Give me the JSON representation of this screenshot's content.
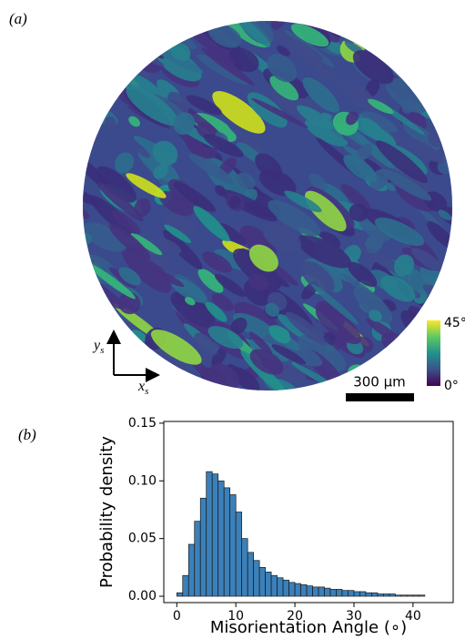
{
  "panel_a": {
    "label": "(a)",
    "y_axis": "y",
    "y_sub": "s",
    "x_axis": "x",
    "x_sub": "s",
    "scale_bar": "300 μm",
    "colorbar_max": "45°",
    "colorbar_min": "0°"
  },
  "chart_data": {
    "type": "histogram",
    "panel_label": "(b)",
    "xlabel": "Misorientation Angle (∘)",
    "ylabel": "Probability density",
    "color": "#3b80b9",
    "bins": [
      0,
      1,
      2,
      3,
      4,
      5,
      6,
      7,
      8,
      9,
      10,
      11,
      12,
      13,
      14,
      15,
      16,
      17,
      18,
      19,
      20,
      21,
      22,
      23,
      24,
      25,
      26,
      27,
      28,
      29,
      30,
      31,
      32,
      33,
      34,
      35,
      36,
      37,
      38,
      39,
      40,
      41,
      42
    ],
    "values": [
      0.003,
      0.018,
      0.045,
      0.065,
      0.085,
      0.108,
      0.106,
      0.1,
      0.094,
      0.088,
      0.073,
      0.05,
      0.038,
      0.031,
      0.025,
      0.021,
      0.018,
      0.016,
      0.014,
      0.012,
      0.011,
      0.01,
      0.009,
      0.008,
      0.008,
      0.007,
      0.006,
      0.006,
      0.005,
      0.005,
      0.004,
      0.004,
      0.003,
      0.003,
      0.002,
      0.002,
      0.002,
      0.001,
      0.001,
      0.001,
      0.001,
      0.001
    ],
    "xlim": [
      -2.2,
      46.8
    ],
    "ylim": [
      -0.0055,
      0.1515
    ],
    "xticks": [
      0,
      10,
      20,
      30,
      40
    ],
    "yticks": [
      {
        "value": 0,
        "label": "0.00"
      },
      {
        "value": 0.05,
        "label": "0.05"
      },
      {
        "value": 0.1,
        "label": "0.10"
      },
      {
        "value": 0.15,
        "label": "0.15"
      }
    ]
  }
}
